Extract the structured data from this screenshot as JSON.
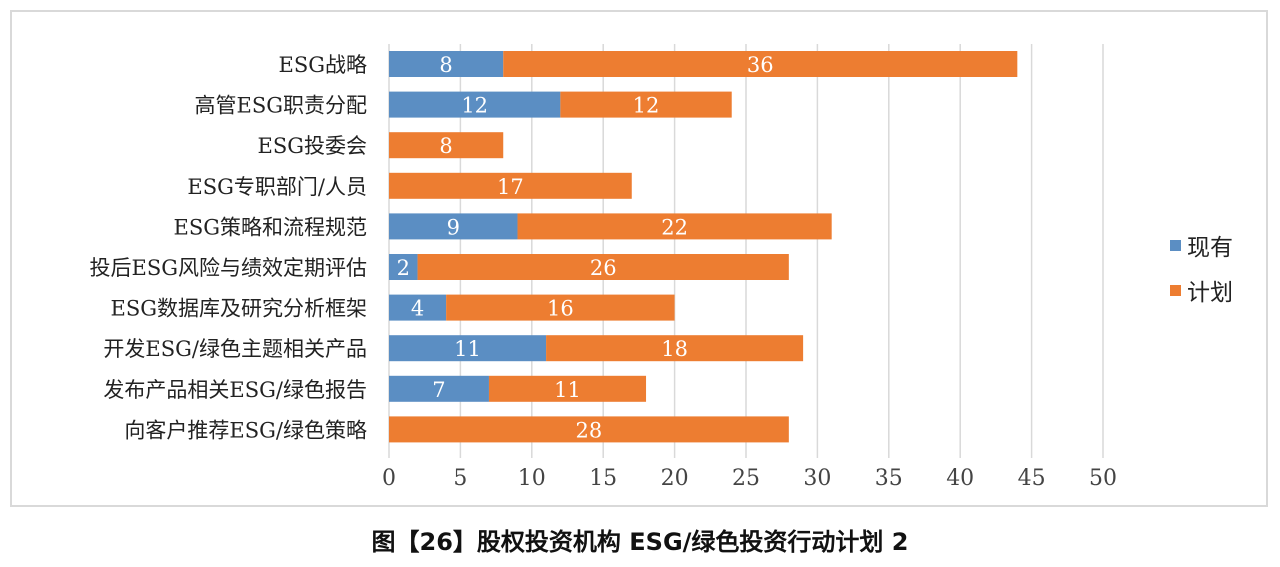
{
  "chart_data": {
    "type": "bar",
    "orientation": "horizontal",
    "stacked": true,
    "categories": [
      "ESG战略",
      "高管ESG职责分配",
      "ESG投委会",
      "ESG专职部门/人员",
      "ESG策略和流程规范",
      "投后ESG风险与绩效定期评估",
      "ESG数据库及研究分析框架",
      "开发ESG/绿色主题相关产品",
      "发布产品相关ESG/绿色报告",
      "向客户推荐ESG/绿色策略"
    ],
    "series": [
      {
        "name": "现有",
        "color": "#5b8ec3",
        "values": [
          8,
          12,
          0,
          0,
          9,
          2,
          4,
          11,
          7,
          0
        ]
      },
      {
        "name": "计划",
        "color": "#ed7d31",
        "values": [
          36,
          12,
          8,
          17,
          22,
          26,
          16,
          18,
          11,
          28
        ]
      }
    ],
    "xlim": [
      0,
      50
    ],
    "xticks": [
      0,
      5,
      10,
      15,
      20,
      25,
      30,
      35,
      40,
      45,
      50
    ],
    "grid": true,
    "legend": "right",
    "title": "图【26】股权投资机构 ESG/绿色投资行动计划 2"
  }
}
